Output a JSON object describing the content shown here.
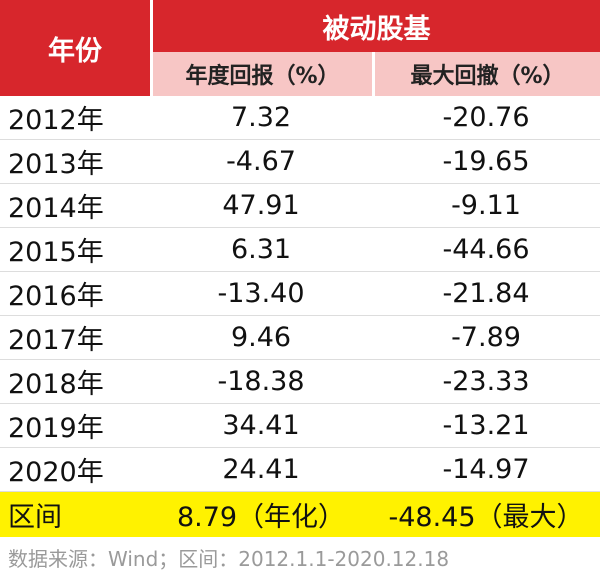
{
  "table": {
    "header": {
      "year": "年份",
      "group": "被动股基",
      "columns": [
        "年度回报（%）",
        "最大回撤（%）"
      ]
    },
    "rows": [
      [
        "2012年",
        "7.32",
        "-20.76"
      ],
      [
        "2013年",
        "-4.67",
        "-19.65"
      ],
      [
        "2014年",
        "47.91",
        "-9.11"
      ],
      [
        "2015年",
        "6.31",
        "-44.66"
      ],
      [
        "2016年",
        "-13.40",
        "-21.84"
      ],
      [
        "2017年",
        "9.46",
        "-7.89"
      ],
      [
        "2018年",
        "-18.38",
        "-23.33"
      ],
      [
        "2019年",
        "34.41",
        "-13.21"
      ],
      [
        "2020年",
        "24.41",
        "-14.97"
      ]
    ],
    "summary": [
      "区间",
      "8.79（年化）",
      "-48.45（最大）"
    ],
    "source": "数据来源：Wind；区间：2012.1.1-2020.12.18"
  }
}
